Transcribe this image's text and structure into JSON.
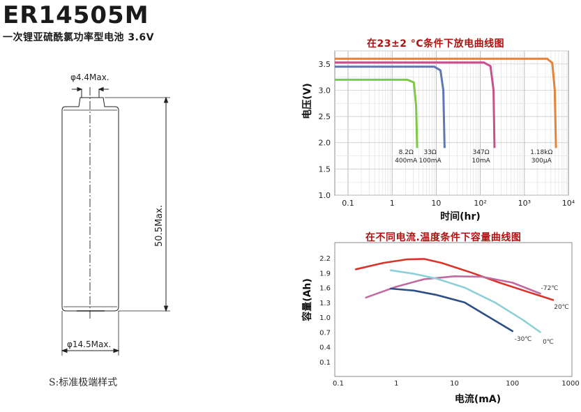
{
  "header": {
    "model": "ER14505M",
    "subtitle": "一次锂亚硫酰氯功率型电池 3.6V"
  },
  "drawing": {
    "top_dim": "φ4.4Max.",
    "height_dim": "50.5Max.",
    "bottom_dim": "φ14.5Max.",
    "caption": "S:标准极端样式"
  },
  "chart_data": [
    {
      "type": "line",
      "title": "在23±2 °C条件下放电曲线图",
      "xlabel": "时间(hr)",
      "ylabel": "电压(V)",
      "x_scale": "log",
      "xlim": [
        0.05,
        10000
      ],
      "ylim": [
        1.0,
        3.75
      ],
      "grid": true,
      "x_ticks": [
        "0.1",
        "1",
        "10",
        "10²",
        "10³",
        "10⁴"
      ],
      "y_ticks": [
        "1.0",
        "1.5",
        "2.0",
        "2.5",
        "3.0",
        "3.5"
      ],
      "series": [
        {
          "name": "8.2Ω 400mA",
          "color": "#7ec84a",
          "x": [
            0.05,
            2.2,
            3.1,
            3.5,
            3.7
          ],
          "y": [
            3.2,
            3.2,
            3.15,
            2.7,
            1.9
          ]
        },
        {
          "name": "33Ω 100mA",
          "color": "#5f78b5",
          "x": [
            0.05,
            9.0,
            12.5,
            14.5,
            15.5
          ],
          "y": [
            3.45,
            3.45,
            3.38,
            3.0,
            1.9
          ]
        },
        {
          "name": "347Ω 10mA",
          "color": "#c8508e",
          "x": [
            0.05,
            120,
            170,
            200,
            210
          ],
          "y": [
            3.53,
            3.53,
            3.46,
            3.0,
            1.9
          ]
        },
        {
          "name": "1.18kΩ 300μA",
          "color": "#e4843a",
          "x": [
            0.05,
            3300,
            4300,
            4900,
            5200
          ],
          "y": [
            3.6,
            3.6,
            3.52,
            3.0,
            1.9
          ]
        }
      ],
      "annotations": [
        {
          "line1": "8.2Ω",
          "line2": "400mA"
        },
        {
          "line1": "33Ω",
          "line2": "100mA"
        },
        {
          "line1": "347Ω",
          "line2": "10mA"
        },
        {
          "line1": "1.18kΩ",
          "line2": "300μA"
        }
      ]
    },
    {
      "type": "line",
      "title": "在不同电流.温度条件下容量曲线图",
      "xlabel": "电流(mA)",
      "ylabel": "容量(Ah)",
      "x_scale": "log",
      "xlim": [
        0.1,
        1000
      ],
      "ylim": [
        0,
        2.45
      ],
      "grid": false,
      "x_ticks": [
        "0.1",
        "1",
        "10",
        "100",
        "1000"
      ],
      "y_ticks": [
        "0.1",
        "0.4",
        "0.7",
        "1.0",
        "1.3",
        "1.6",
        "1.9",
        "2.2"
      ],
      "series": [
        {
          "name": "20℃",
          "color": "#d8342a",
          "x": [
            0.2,
            0.6,
            1.5,
            3.0,
            6.0,
            20,
            60,
            200,
            500
          ],
          "y": [
            1.97,
            2.1,
            2.17,
            2.18,
            2.1,
            1.9,
            1.7,
            1.5,
            1.35
          ]
        },
        {
          "name": "-72℃",
          "color": "#c06aa0",
          "x": [
            0.3,
            1.0,
            3.0,
            10,
            30,
            100,
            300
          ],
          "y": [
            1.4,
            1.62,
            1.77,
            1.83,
            1.82,
            1.7,
            1.48
          ]
        },
        {
          "name": "0℃",
          "color": "#8ed0d8",
          "x": [
            0.8,
            2.0,
            5.0,
            15,
            50,
            150,
            300
          ],
          "y": [
            1.95,
            1.88,
            1.78,
            1.6,
            1.3,
            0.95,
            0.7
          ]
        },
        {
          "name": "-30℃",
          "color": "#2e4f86",
          "x": [
            0.8,
            2.0,
            5.0,
            15,
            40,
            100
          ],
          "y": [
            1.58,
            1.54,
            1.45,
            1.3,
            1.0,
            0.72
          ]
        }
      ],
      "legend_labels": [
        "-72℃",
        "20℃",
        "-30℃",
        "0℃"
      ]
    }
  ]
}
